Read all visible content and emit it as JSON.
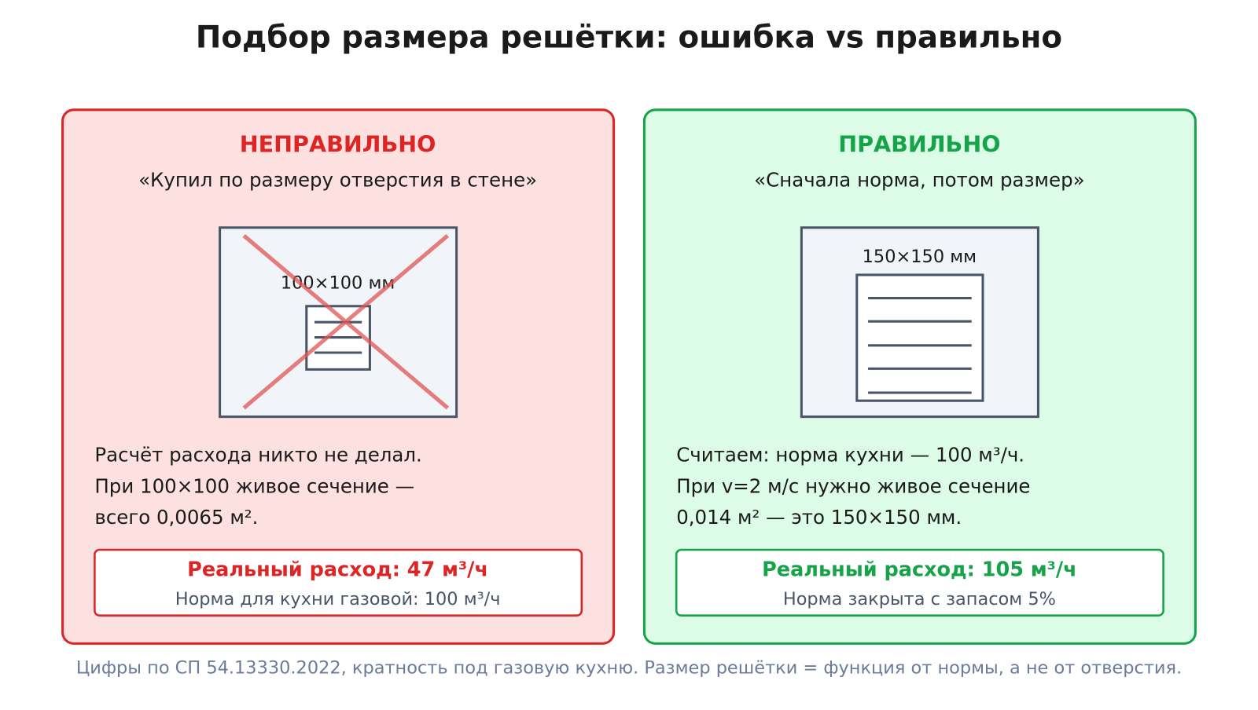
{
  "title": "Подбор размера решётки: ошибка vs правильно",
  "panels": [
    {
      "heading": "НЕПРАВИЛЬНО",
      "quote": "«Купил по размеру отверстия в стене»",
      "grille_label": "100×100 мм",
      "body": [
        "Расчёт расхода никто не делал.",
        "При 100×100 живое сечение —",
        "всего 0,0065 м²."
      ],
      "result": "Реальный расход: 47 м³/ч",
      "note": "Норма для кухни газовой: 100 м³/ч"
    },
    {
      "heading": "ПРАВИЛЬНО",
      "quote": "«Сначала норма, потом размер»",
      "grille_label": "150×150 мм",
      "body": [
        "Считаем: норма кухни — 100 м³/ч.",
        "При v=2 м/с нужно живое сечение",
        "0,014 м² — это 150×150 мм."
      ],
      "result": "Реальный расход: 105 м³/ч",
      "note": "Норма закрыта с запасом 5%"
    }
  ],
  "footer": "Цифры по СП 54.13330.2022, кратность под газовую кухню. Размер решётки = функция от нормы, а не от отверстия."
}
